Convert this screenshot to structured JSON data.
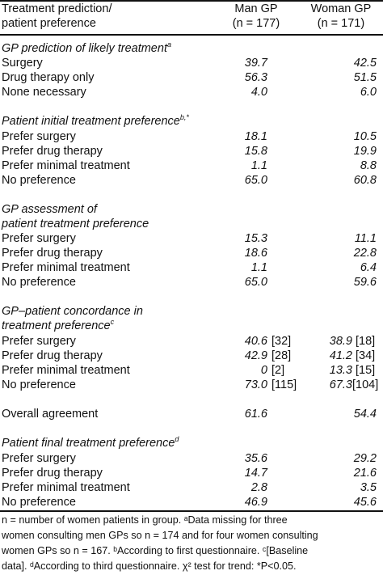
{
  "header": {
    "col_label_line1": "Treatment prediction/",
    "col_label_line2": "patient preference",
    "man_gp": "Man GP",
    "man_n": "(n = 177)",
    "woman_gp": "Woman GP",
    "woman_n": "(n = 171)"
  },
  "sections": {
    "s1": {
      "title": "GP prediction of likely treatment",
      "sup": "a",
      "rows": [
        {
          "label": "Surgery",
          "man": "39.7",
          "woman": "42.5"
        },
        {
          "label": "Drug therapy only",
          "man": "56.3",
          "woman": "51.5"
        },
        {
          "label": "None necessary",
          "man": "4.0",
          "woman": "6.0"
        }
      ]
    },
    "s2": {
      "title": "Patient initial treatment preference",
      "sup": "b,*",
      "rows": [
        {
          "label": "Prefer surgery",
          "man": "18.1",
          "woman": "10.5"
        },
        {
          "label": "Prefer drug therapy",
          "man": "15.8",
          "woman": "19.9"
        },
        {
          "label": "Prefer minimal treatment",
          "man": "1.1",
          "woman": "8.8"
        },
        {
          "label": "No preference",
          "man": "65.0",
          "woman": "60.8"
        }
      ]
    },
    "s3": {
      "title_line1": "GP assessment of",
      "title_line2": "patient treatment preference",
      "rows": [
        {
          "label": "Prefer surgery",
          "man": "15.3",
          "woman": "11.1"
        },
        {
          "label": "Prefer drug therapy",
          "man": "18.6",
          "woman": "22.8"
        },
        {
          "label": "Prefer minimal treatment",
          "man": "1.1",
          "woman": "6.4"
        },
        {
          "label": "No preference",
          "man": "65.0",
          "woman": "59.6"
        }
      ]
    },
    "s4": {
      "title_line1": "GP–patient concordance in",
      "title_line2": "treatment preference",
      "sup": "c",
      "rows": [
        {
          "label": "Prefer surgery",
          "man": "40.6",
          "man_extra": "[32]",
          "woman": "38.9",
          "woman_extra": "[18]"
        },
        {
          "label": "Prefer drug therapy",
          "man": "42.9",
          "man_extra": "[28]",
          "woman": "41.2",
          "woman_extra": "[34]"
        },
        {
          "label": "Prefer minimal treatment",
          "man": "0",
          "man_extra": "[2]",
          "woman": "13.3",
          "woman_extra": "[15]"
        },
        {
          "label": "No preference",
          "man": "73.0",
          "man_extra": "[115]",
          "woman": "67.3",
          "woman_extra": "[104]"
        }
      ]
    },
    "overall": {
      "label": "Overall agreement",
      "man": "61.6",
      "woman": "54.4"
    },
    "s5": {
      "title": "Patient final treatment preference",
      "sup": "d",
      "rows": [
        {
          "label": "Prefer surgery",
          "man": "35.6",
          "woman": "29.2"
        },
        {
          "label": "Prefer drug therapy",
          "man": "14.7",
          "woman": "21.6"
        },
        {
          "label": "Prefer minimal treatment",
          "man": "2.8",
          "woman": "3.5"
        },
        {
          "label": "No preference",
          "man": "46.9",
          "woman": "45.6"
        }
      ]
    }
  },
  "footnote": {
    "line1": "n = number of women patients in group. ᵃData missing for three",
    "line2": "women consulting men GPs so n = 174 and for four women consulting",
    "line3": "women GPs so n = 167. ᵇAccording to first questionnaire. ᶜ[Baseline",
    "line4": "data]. ᵈAccording to third questionnaire. χ² test for trend: *P<0.05."
  }
}
